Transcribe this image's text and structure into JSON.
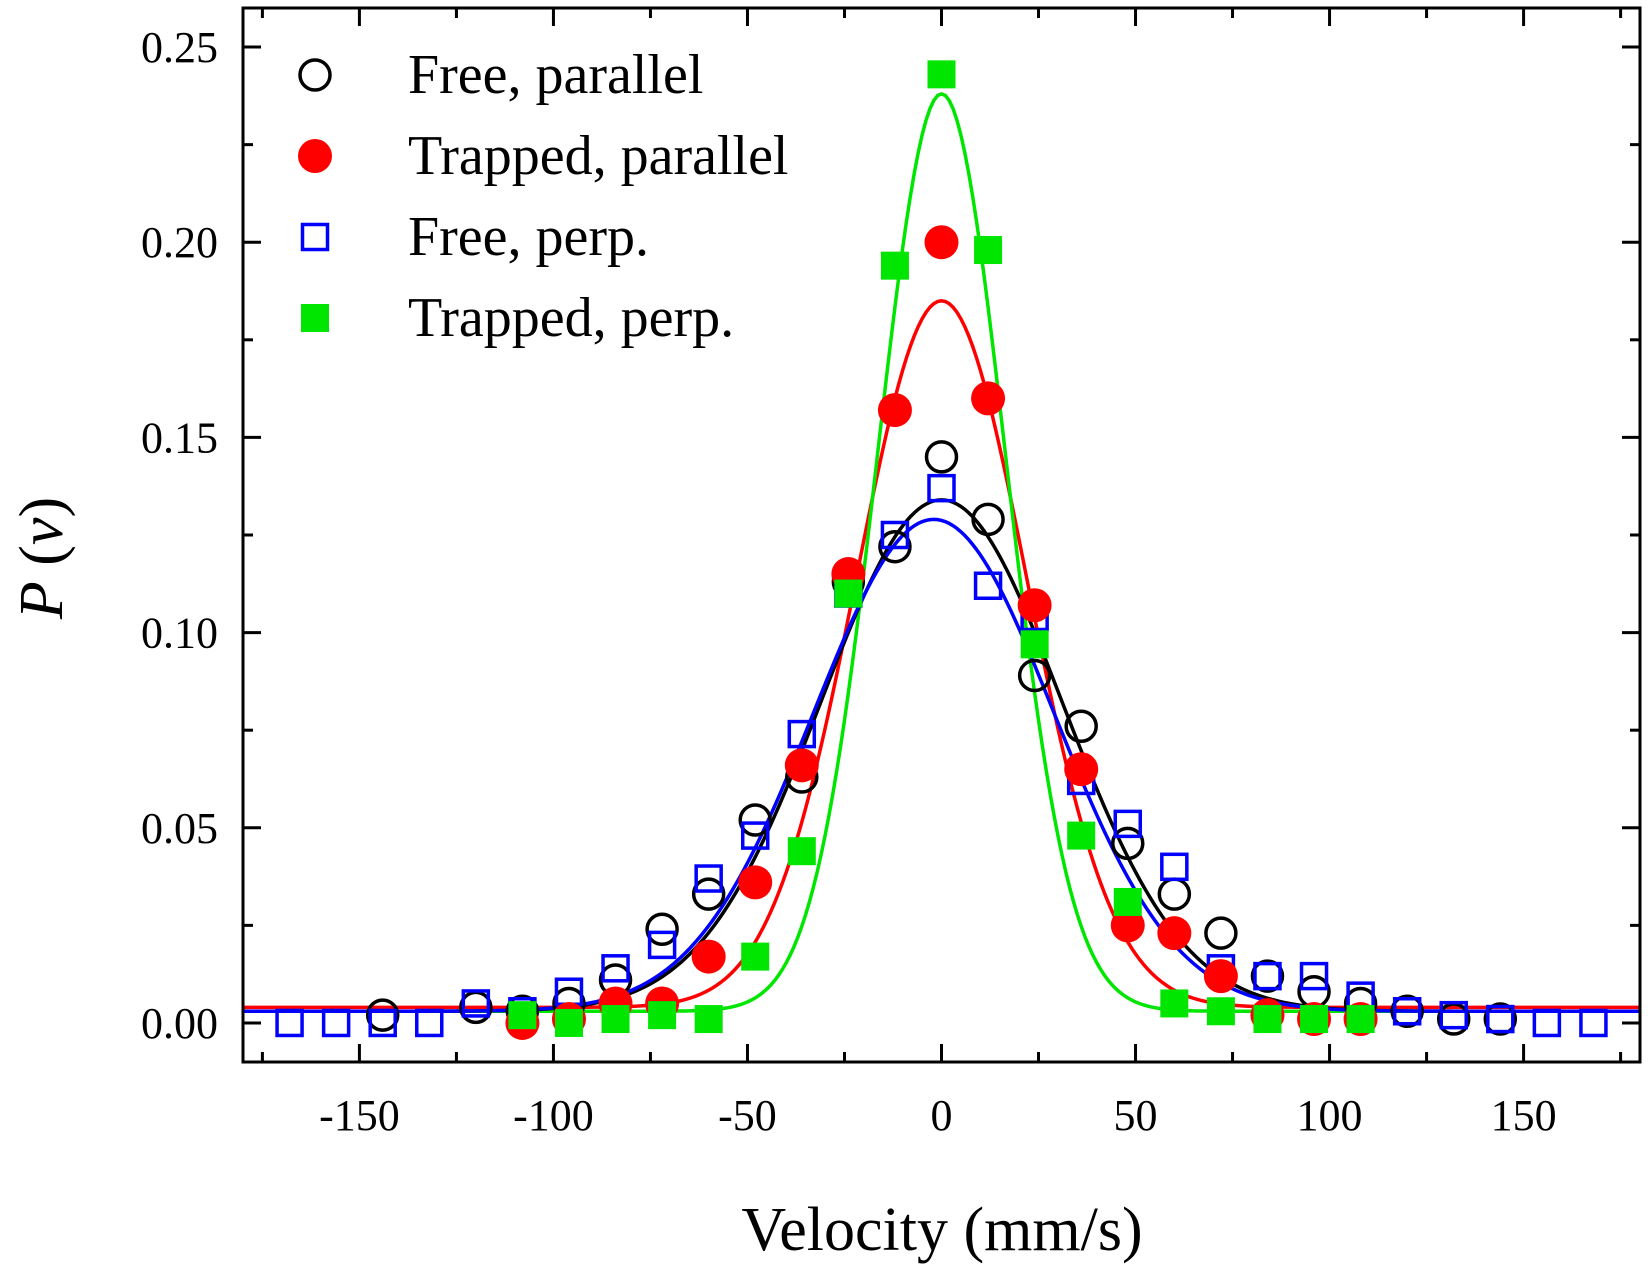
{
  "chart_data": {
    "type": "scatter",
    "title": "",
    "xlabel": "Velocity (mm/s)",
    "ylabel": "P (v)",
    "ylabel_parts": {
      "symbol": "P",
      "open": " (",
      "arg": "v",
      "close": ")"
    },
    "xlim": [
      -180,
      180
    ],
    "ylim": [
      -0.01,
      0.26
    ],
    "xticks": [
      -150,
      -100,
      -50,
      0,
      50,
      100,
      150
    ],
    "xtick_labels": [
      "-150",
      "-100",
      "-50",
      "0",
      "50",
      "100",
      "150"
    ],
    "yticks": [
      0.0,
      0.05,
      0.1,
      0.15,
      0.2,
      0.25
    ],
    "ytick_labels": [
      "0.00",
      "0.05",
      "0.10",
      "0.15",
      "0.20",
      "0.25"
    ],
    "grid": false,
    "legend_position": "top-left",
    "series": [
      {
        "name": "Free, parallel",
        "marker": "open-circle",
        "color": "#000000",
        "x": [
          -144,
          -120,
          -108,
          -96,
          -84,
          -72,
          -60,
          -48,
          -36,
          -24,
          -12,
          0,
          12,
          24,
          36,
          48,
          60,
          72,
          84,
          96,
          108,
          120,
          132,
          144
        ],
        "y": [
          0.002,
          0.004,
          0.003,
          0.005,
          0.011,
          0.024,
          0.033,
          0.052,
          0.063,
          0.113,
          0.122,
          0.145,
          0.129,
          0.089,
          0.076,
          0.046,
          0.033,
          0.023,
          0.012,
          0.008,
          0.005,
          0.003,
          0.001,
          0.001
        ],
        "fit": {
          "amplitude": 0.131,
          "center": 0,
          "sigma": 31,
          "offset": 0.003
        }
      },
      {
        "name": "Trapped, parallel",
        "marker": "filled-circle",
        "color": "#ff0000",
        "x": [
          -108,
          -96,
          -84,
          -72,
          -60,
          -48,
          -36,
          -24,
          -12,
          0,
          12,
          24,
          36,
          48,
          60,
          72,
          84,
          96,
          108
        ],
        "y": [
          0.0,
          0.001,
          0.005,
          0.005,
          0.017,
          0.036,
          0.066,
          0.115,
          0.157,
          0.2,
          0.16,
          0.107,
          0.065,
          0.025,
          0.023,
          0.012,
          0.002,
          0.001,
          0.001
        ],
        "fit": {
          "amplitude": 0.181,
          "center": 0,
          "sigma": 22,
          "offset": 0.004
        }
      },
      {
        "name": "Free, perp.",
        "marker": "open-square",
        "color": "#0000ff",
        "x": [
          -168,
          -156,
          -144,
          -132,
          -120,
          -108,
          -96,
          -84,
          -72,
          -60,
          -48,
          -36,
          -24,
          -12,
          0,
          12,
          24,
          36,
          48,
          60,
          72,
          84,
          96,
          108,
          120,
          132,
          144,
          156,
          168
        ],
        "y": [
          0.0,
          0.0,
          0.0,
          0.0,
          0.005,
          0.003,
          0.008,
          0.014,
          0.02,
          0.037,
          0.048,
          0.074,
          0.11,
          0.125,
          0.137,
          0.112,
          0.104,
          0.062,
          0.051,
          0.04,
          0.014,
          0.012,
          0.012,
          0.007,
          0.003,
          0.002,
          0.001,
          0.0,
          0.0
        ],
        "fit": {
          "amplitude": 0.126,
          "center": -2,
          "sigma": 31,
          "offset": 0.003
        }
      },
      {
        "name": "Trapped, perp.",
        "marker": "filled-square",
        "color": "#00e600",
        "x": [
          -108,
          -96,
          -84,
          -72,
          -60,
          -48,
          -36,
          -24,
          -12,
          0,
          12,
          24,
          36,
          48,
          60,
          72,
          84,
          96,
          108
        ],
        "y": [
          0.002,
          0.0,
          0.001,
          0.002,
          0.001,
          0.017,
          0.044,
          0.11,
          0.194,
          0.243,
          0.198,
          0.097,
          0.048,
          0.031,
          0.005,
          0.003,
          0.001,
          0.001,
          0.001
        ],
        "fit": {
          "amplitude": 0.235,
          "center": 0,
          "sigma": 16.5,
          "offset": 0.003
        }
      }
    ]
  }
}
